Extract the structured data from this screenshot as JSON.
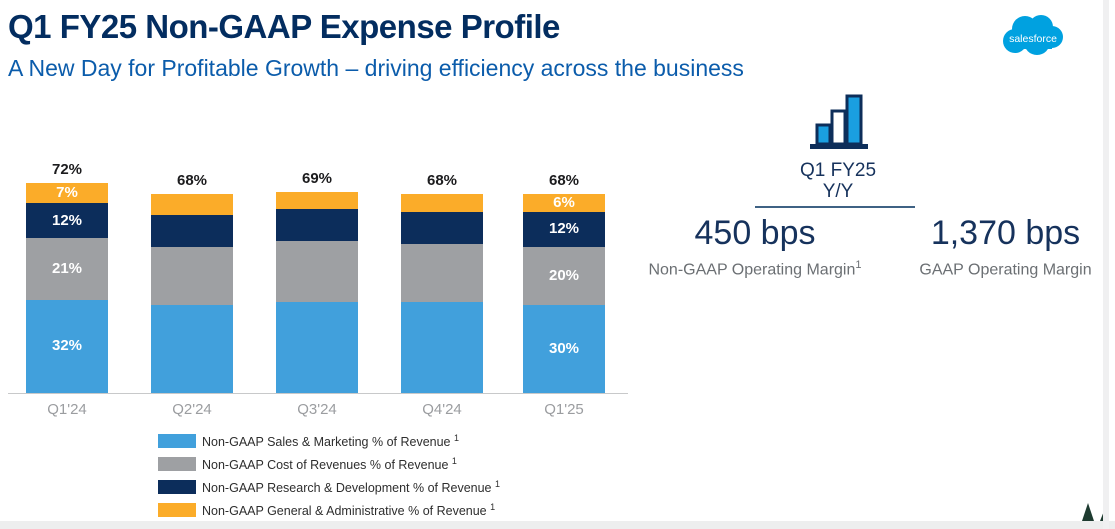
{
  "header": {
    "title": "Q1 FY25 Non-GAAP Expense Profile",
    "subtitle": "A New Day for Profitable Growth – driving efficiency across the business",
    "logo_text": "salesforce"
  },
  "chart_data": {
    "type": "bar",
    "stacked": true,
    "title": "",
    "xlabel": "",
    "ylabel": "",
    "grid": false,
    "legend_position": "below-left",
    "categories": [
      "Q1'24",
      "Q2'24",
      "Q3'24",
      "Q4'24",
      "Q1'25"
    ],
    "totals": [
      "72%",
      "68%",
      "69%",
      "68%",
      "68%"
    ],
    "series": [
      {
        "name": "Non-GAAP Sales & Marketing % of Revenue",
        "footnote": "1",
        "color": "#41A0DC",
        "values": [
          32,
          30,
          31,
          31,
          30
        ]
      },
      {
        "name": "Non-GAAP Cost of Revenues % of Revenue",
        "footnote": "1",
        "color": "#9EA0A3",
        "values": [
          21,
          20,
          21,
          20,
          20
        ]
      },
      {
        "name": "Non-GAAP Research & Development % of Revenue",
        "footnote": "1",
        "color": "#0C2D5B",
        "values": [
          12,
          11,
          11,
          11,
          12
        ]
      },
      {
        "name": "Non-GAAP General & Administrative % of Revenue",
        "footnote": "1",
        "color": "#FBAC29",
        "values": [
          7,
          7,
          6,
          6,
          6
        ]
      }
    ],
    "segment_labels_shown": [
      true,
      false,
      false,
      false,
      true
    ],
    "ylim": [
      0,
      80
    ]
  },
  "right_panel": {
    "icon_name": "bar-growth-icon",
    "period_line1": "Q1 FY25",
    "period_line2": "Y/Y",
    "stats": [
      {
        "value": "450 bps",
        "label": "Non-GAAP Operating Margin",
        "footnote": "1"
      },
      {
        "value": "1,370 bps",
        "label": "GAAP Operating Margin",
        "footnote": ""
      }
    ]
  },
  "colors": {
    "title_navy": "#032D60",
    "subtitle_blue": "#0B5CAB",
    "stat_navy": "#16325C",
    "stat_label_gray": "#6B6F73",
    "axis_label_gray": "#9B9DA0",
    "logo_blue": "#00A1E0",
    "icon_fill_blue": "#1A9FE0",
    "icon_stroke_navy": "#0D2E5A",
    "tree_green": "#1E3B30"
  }
}
